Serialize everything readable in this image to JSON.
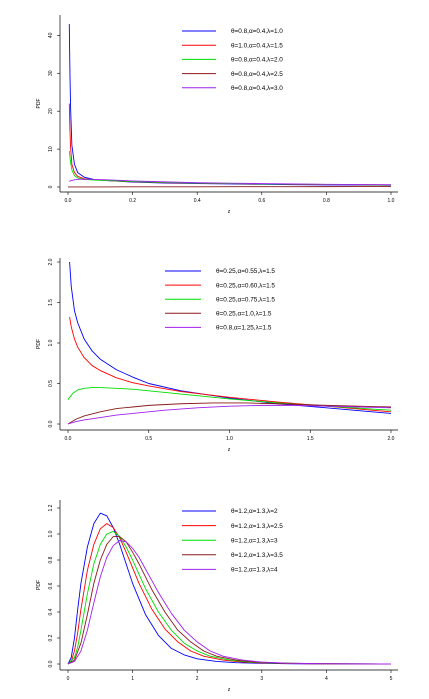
{
  "chart_data": [
    {
      "type": "line",
      "xlabel": "z",
      "ylabel": "PDF",
      "xlim": [
        0,
        1.0
      ],
      "ylim": [
        0,
        43
      ],
      "xticks": [
        "0.0",
        "0.2",
        "0.4",
        "0.6",
        "0.8",
        "1.0"
      ],
      "yticks": [
        "0",
        "10",
        "20",
        "30",
        "40"
      ],
      "legend_position": "top-right",
      "series": [
        {
          "name": "θ=0.8,α=0.4,λ=1.0",
          "color": "#0000ff",
          "x": [
            0.004,
            0.006,
            0.008,
            0.012,
            0.02,
            0.03,
            0.05,
            0.08,
            0.12,
            0.2,
            0.3,
            0.4,
            0.5,
            0.6,
            0.7,
            0.8,
            0.9,
            1.0
          ],
          "y": [
            43,
            30,
            21,
            11,
            6.0,
            3.8,
            2.6,
            2.0,
            1.7,
            1.3,
            1.05,
            0.9,
            0.8,
            0.7,
            0.62,
            0.56,
            0.5,
            0.46
          ]
        },
        {
          "name": "θ=1.0,α=0.4,λ=1.5",
          "color": "#ff0000",
          "x": [
            0.004,
            0.006,
            0.008,
            0.012,
            0.02,
            0.03,
            0.05,
            0.08,
            0.12,
            0.2,
            0.3,
            0.4,
            0.5,
            0.6,
            0.7,
            0.8,
            0.9,
            1.0
          ],
          "y": [
            22,
            15,
            10.5,
            6.0,
            3.8,
            2.8,
            2.2,
            1.9,
            1.7,
            1.4,
            1.15,
            1.0,
            0.9,
            0.8,
            0.72,
            0.65,
            0.6,
            0.55
          ]
        },
        {
          "name": "θ=0.8,α=0.4,λ=2.0",
          "color": "#00dd00",
          "x": [
            0.004,
            0.008,
            0.012,
            0.02,
            0.03,
            0.05,
            0.08,
            0.12,
            0.2,
            0.3,
            0.4,
            0.5,
            0.6,
            0.7,
            0.8,
            0.9,
            1.0
          ],
          "y": [
            9.5,
            6.5,
            4.5,
            3.0,
            2.4,
            2.0,
            1.85,
            1.7,
            1.45,
            1.2,
            1.05,
            0.92,
            0.82,
            0.74,
            0.67,
            0.6,
            0.55
          ]
        },
        {
          "name": "θ=0.8,α=0.4,λ=2.5",
          "color": "#8b1a1a",
          "x": [
            0.0,
            0.1,
            0.2,
            0.3,
            0.4,
            0.5,
            0.6,
            0.7,
            0.8,
            0.9,
            1.0
          ],
          "y": [
            0.02,
            0.03,
            0.04,
            0.05,
            0.06,
            0.07,
            0.08,
            0.09,
            0.1,
            0.11,
            0.12
          ]
        },
        {
          "name": "θ=0.8,α=0.4,λ=3.0",
          "color": "#a020f0",
          "x": [
            0.004,
            0.01,
            0.02,
            0.03,
            0.05,
            0.08,
            0.12,
            0.2,
            0.3,
            0.4,
            0.5,
            0.6,
            0.7,
            0.8,
            0.9,
            1.0
          ],
          "y": [
            1.5,
            1.7,
            1.9,
            2.0,
            2.05,
            2.0,
            1.9,
            1.6,
            1.35,
            1.15,
            1.0,
            0.9,
            0.8,
            0.72,
            0.65,
            0.6
          ]
        }
      ]
    },
    {
      "type": "line",
      "xlabel": "z",
      "ylabel": "PDF",
      "xlim": [
        0,
        2.0
      ],
      "ylim": [
        0,
        2.0
      ],
      "xticks": [
        "0.0",
        "0.5",
        "1.0",
        "1.5",
        "2.0"
      ],
      "yticks": [
        "0.0",
        "0.5",
        "1.0",
        "1.5",
        "2.0"
      ],
      "legend_position": "top-right",
      "series": [
        {
          "name": "θ=0.25,α=0.55,λ=1.5",
          "color": "#0000ff",
          "x": [
            0.01,
            0.02,
            0.04,
            0.06,
            0.1,
            0.15,
            0.2,
            0.3,
            0.4,
            0.5,
            0.7,
            1.0,
            1.3,
            1.6,
            2.0
          ],
          "y": [
            2.0,
            1.7,
            1.4,
            1.25,
            1.05,
            0.9,
            0.8,
            0.67,
            0.58,
            0.5,
            0.41,
            0.32,
            0.25,
            0.2,
            0.13
          ]
        },
        {
          "name": "θ=0.25,α=0.60,λ=1.5",
          "color": "#ff0000",
          "x": [
            0.01,
            0.02,
            0.04,
            0.06,
            0.1,
            0.15,
            0.2,
            0.3,
            0.4,
            0.5,
            0.7,
            1.0,
            1.3,
            1.6,
            2.0
          ],
          "y": [
            1.32,
            1.2,
            1.05,
            0.95,
            0.82,
            0.72,
            0.66,
            0.57,
            0.51,
            0.47,
            0.4,
            0.33,
            0.27,
            0.22,
            0.15
          ]
        },
        {
          "name": "θ=0.25,α=0.75,λ=1.5",
          "color": "#00dd00",
          "x": [
            0.0,
            0.03,
            0.06,
            0.1,
            0.15,
            0.2,
            0.3,
            0.4,
            0.5,
            0.7,
            1.0,
            1.3,
            1.6,
            2.0
          ],
          "y": [
            0.3,
            0.38,
            0.42,
            0.44,
            0.45,
            0.45,
            0.44,
            0.43,
            0.41,
            0.37,
            0.31,
            0.26,
            0.22,
            0.17
          ]
        },
        {
          "name": "θ=0.25,α=1.0,λ=1.5",
          "color": "#8b1a1a",
          "x": [
            0.0,
            0.05,
            0.1,
            0.2,
            0.3,
            0.4,
            0.5,
            0.7,
            0.9,
            1.1,
            1.3,
            1.6,
            2.0
          ],
          "y": [
            0.0,
            0.06,
            0.1,
            0.15,
            0.19,
            0.21,
            0.23,
            0.25,
            0.26,
            0.26,
            0.25,
            0.23,
            0.21
          ]
        },
        {
          "name": "θ=0.8,α=1.25,λ=1.5",
          "color": "#a020f0",
          "x": [
            0.0,
            0.05,
            0.1,
            0.2,
            0.3,
            0.4,
            0.6,
            0.8,
            1.0,
            1.2,
            1.4,
            1.6,
            1.8,
            2.0
          ],
          "y": [
            0.0,
            0.03,
            0.05,
            0.08,
            0.11,
            0.13,
            0.17,
            0.2,
            0.22,
            0.23,
            0.23,
            0.22,
            0.21,
            0.2
          ]
        }
      ]
    },
    {
      "type": "line",
      "xlabel": "z",
      "ylabel": "PDF",
      "xlim": [
        0,
        5
      ],
      "ylim": [
        0,
        1.2
      ],
      "xticks": [
        "0",
        "1",
        "2",
        "3",
        "4",
        "5"
      ],
      "yticks": [
        "0.0",
        "0.2",
        "0.4",
        "0.6",
        "0.8",
        "1.0",
        "1.2"
      ],
      "legend_position": "top-right",
      "series": [
        {
          "name": "θ=1.2,α=1.3,λ=2",
          "color": "#0000ff",
          "x": [
            0,
            0.05,
            0.1,
            0.15,
            0.2,
            0.3,
            0.4,
            0.5,
            0.6,
            0.7,
            0.8,
            0.9,
            1.0,
            1.2,
            1.4,
            1.6,
            1.8,
            2.0,
            2.3,
            2.6,
            3.0,
            3.5,
            4.0,
            5.0
          ],
          "y": [
            0,
            0.05,
            0.2,
            0.42,
            0.62,
            0.9,
            1.08,
            1.16,
            1.14,
            1.05,
            0.92,
            0.77,
            0.62,
            0.38,
            0.22,
            0.12,
            0.07,
            0.04,
            0.02,
            0.01,
            0.005,
            0.002,
            0.001,
            0
          ]
        },
        {
          "name": "θ=1.2,α=1.3,λ=2.5",
          "color": "#ff0000",
          "x": [
            0,
            0.05,
            0.1,
            0.15,
            0.2,
            0.3,
            0.4,
            0.5,
            0.6,
            0.7,
            0.8,
            0.9,
            1.0,
            1.1,
            1.3,
            1.5,
            1.7,
            1.9,
            2.1,
            2.4,
            2.7,
            3.0,
            3.5,
            4.0,
            5.0
          ],
          "y": [
            0,
            0.02,
            0.1,
            0.24,
            0.42,
            0.72,
            0.92,
            1.04,
            1.08,
            1.05,
            0.97,
            0.86,
            0.74,
            0.62,
            0.42,
            0.27,
            0.17,
            0.1,
            0.06,
            0.03,
            0.015,
            0.008,
            0.003,
            0.001,
            0
          ]
        },
        {
          "name": "θ=1.2,α=1.3,λ=3",
          "color": "#00dd00",
          "x": [
            0,
            0.1,
            0.15,
            0.2,
            0.3,
            0.4,
            0.5,
            0.6,
            0.7,
            0.8,
            0.9,
            1.0,
            1.1,
            1.2,
            1.4,
            1.6,
            1.8,
            2.0,
            2.2,
            2.5,
            2.8,
            3.2,
            3.7,
            4.2,
            5.0
          ],
          "y": [
            0,
            0.05,
            0.13,
            0.26,
            0.54,
            0.77,
            0.92,
            1.0,
            1.02,
            0.98,
            0.9,
            0.8,
            0.69,
            0.58,
            0.4,
            0.26,
            0.16,
            0.1,
            0.06,
            0.03,
            0.015,
            0.007,
            0.003,
            0.001,
            0
          ]
        },
        {
          "name": "θ=1.2,α=1.3,λ=3.5",
          "color": "#8b1a1a",
          "x": [
            0,
            0.1,
            0.2,
            0.3,
            0.4,
            0.5,
            0.6,
            0.7,
            0.8,
            0.9,
            1.0,
            1.1,
            1.2,
            1.3,
            1.5,
            1.7,
            1.9,
            2.1,
            2.3,
            2.6,
            2.9,
            3.3,
            3.8,
            4.3,
            5.0
          ],
          "y": [
            0,
            0.03,
            0.16,
            0.38,
            0.62,
            0.8,
            0.92,
            0.98,
            0.98,
            0.94,
            0.86,
            0.77,
            0.67,
            0.57,
            0.4,
            0.26,
            0.17,
            0.1,
            0.06,
            0.03,
            0.015,
            0.007,
            0.003,
            0.001,
            0
          ]
        },
        {
          "name": "θ=1.2,α=1.3,λ=4",
          "color": "#a020f0",
          "x": [
            0,
            0.1,
            0.2,
            0.3,
            0.4,
            0.5,
            0.6,
            0.7,
            0.8,
            0.9,
            1.0,
            1.1,
            1.2,
            1.3,
            1.4,
            1.6,
            1.8,
            2.0,
            2.2,
            2.4,
            2.7,
            3.0,
            3.4,
            3.9,
            4.4,
            5.0
          ],
          "y": [
            0,
            0.02,
            0.1,
            0.26,
            0.47,
            0.67,
            0.82,
            0.91,
            0.95,
            0.94,
            0.89,
            0.82,
            0.73,
            0.64,
            0.55,
            0.39,
            0.26,
            0.17,
            0.1,
            0.06,
            0.03,
            0.015,
            0.006,
            0.002,
            0.001,
            0
          ]
        }
      ]
    }
  ]
}
